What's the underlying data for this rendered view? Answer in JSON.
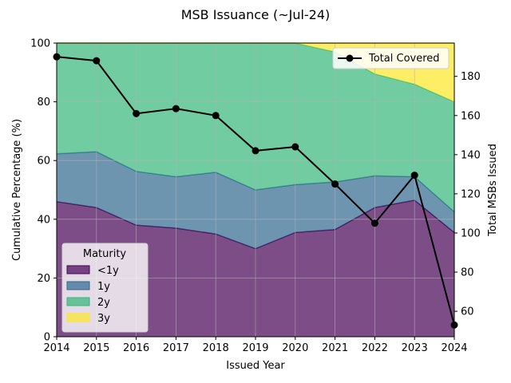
{
  "chart_data": {
    "type": "area",
    "title": "MSB Issuance (~Jul-24)",
    "xlabel": "Issued Year",
    "ylabel": "Cumulative Percentage (%)",
    "y2label": "Total MSBs Issued",
    "x": [
      2014,
      2015,
      2016,
      2017,
      2018,
      2019,
      2020,
      2021,
      2022,
      2023,
      2024
    ],
    "xlim": [
      2014,
      2024
    ],
    "ylim": [
      0,
      100
    ],
    "y2lim": [
      47,
      197
    ],
    "yticks": [
      0,
      20,
      40,
      60,
      80,
      100
    ],
    "y2ticks": [
      60,
      80,
      100,
      120,
      140,
      160,
      180
    ],
    "grid": true,
    "stacked": true,
    "series": [
      {
        "name": "<1y",
        "color": "#440154",
        "values": [
          46,
          44,
          38,
          37,
          35,
          30,
          35.5,
          36.5,
          44,
          46.5,
          35.5
        ]
      },
      {
        "name": "1y",
        "color": "#31688e",
        "values": [
          16.3,
          19,
          18.3,
          17.5,
          21,
          20,
          16.3,
          16.2,
          10.8,
          8,
          7
        ]
      },
      {
        "name": "2y",
        "color": "#35b779",
        "values": [
          37.7,
          37,
          43.7,
          45.5,
          44,
          50,
          48.2,
          44.3,
          34.7,
          31.5,
          37.5
        ]
      },
      {
        "name": "3y",
        "color": "#fde725",
        "values": [
          0,
          0,
          0,
          0,
          0,
          0,
          0,
          3,
          10.5,
          14,
          20
        ]
      }
    ],
    "line_series": {
      "name": "Total Covered",
      "axis": "right",
      "color": "#000000",
      "values": [
        190,
        188,
        161,
        163.5,
        160,
        142,
        144,
        125,
        105,
        129.5,
        53
      ]
    },
    "legend_area": {
      "title": "Maturity",
      "placement": "lower-left"
    },
    "legend_line": {
      "placement": "upper-right"
    }
  }
}
